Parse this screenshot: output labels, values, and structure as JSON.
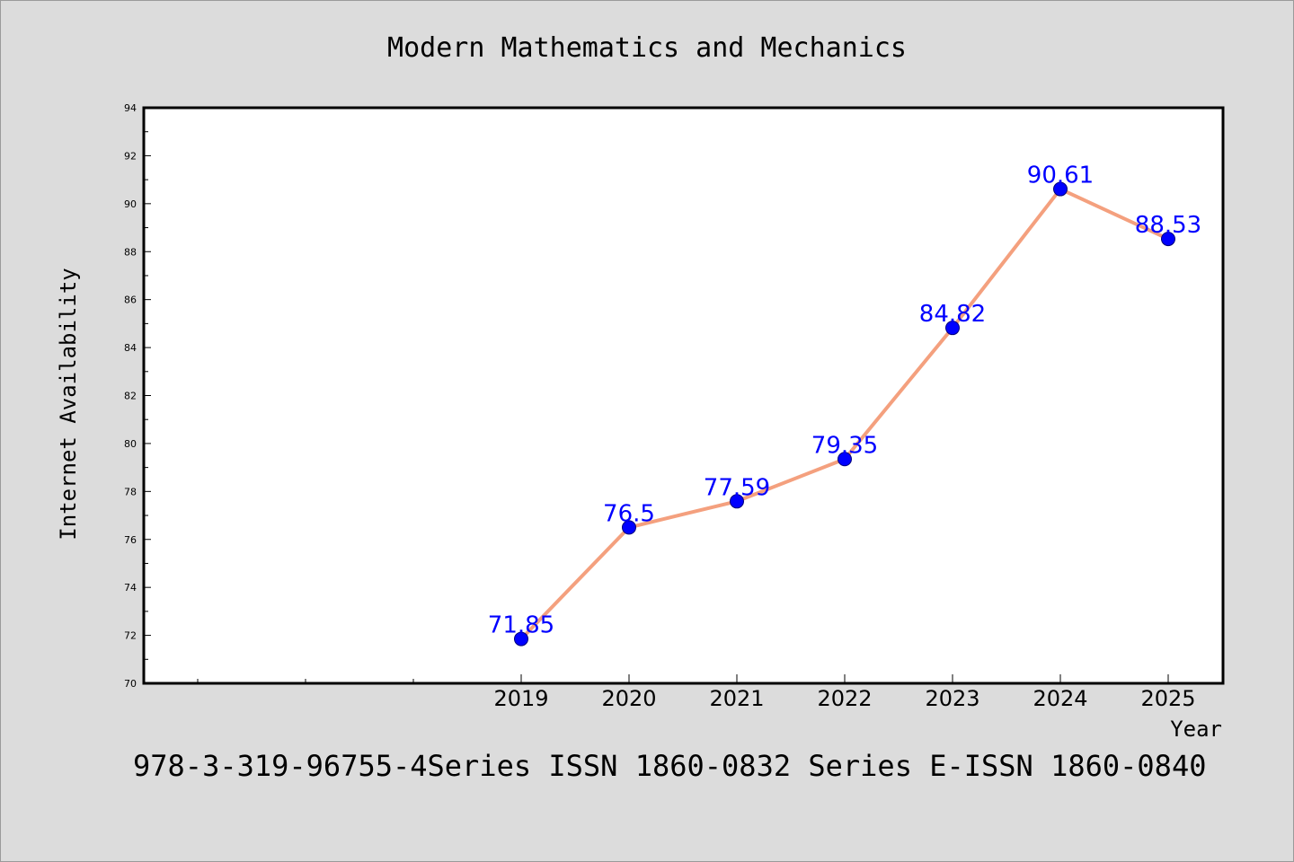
{
  "chart_data": {
    "type": "line",
    "title": "Modern Mathematics and Mechanics",
    "xlabel": "Year",
    "ylabel": "Internet Availability",
    "categories": [
      "2019",
      "2020",
      "2021",
      "2022",
      "2023",
      "2024",
      "2025"
    ],
    "series": [
      {
        "values": [
          71.85,
          76.5,
          77.59,
          79.35,
          84.82,
          90.61,
          88.53
        ],
        "data_labels": [
          "71.85",
          "76.5",
          "77.59",
          "79.35",
          "84.82",
          "90.61",
          "88.53"
        ],
        "line_color": "#f4a07e",
        "marker_color": "#0000ff"
      }
    ],
    "ylim": [
      70,
      94
    ],
    "y_ticks": [
      "70",
      "72",
      "74",
      "76",
      "78",
      "80",
      "82",
      "84",
      "86",
      "88",
      "90",
      "92",
      "94"
    ],
    "grid": false,
    "legend": "none",
    "caption": "978-3-319-96755-4Series ISSN 1860-0832 Series E-ISSN 1860-0840"
  },
  "colors": {
    "background": "#dcdcdc",
    "plot_background": "#ffffff",
    "line": "#f4a07e",
    "marker": "#0000ff",
    "data_label": "#0000ff"
  }
}
